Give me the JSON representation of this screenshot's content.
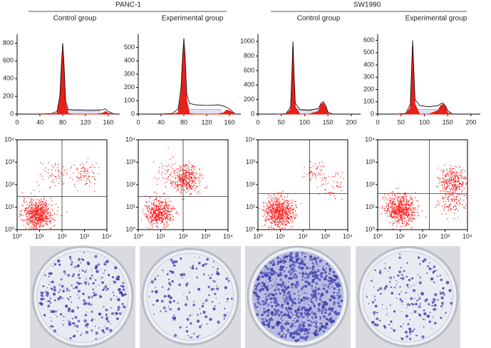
{
  "header": {
    "left": "PANC-1",
    "right": "SW1990"
  },
  "groups": [
    "Control group",
    "Experimental group",
    "Control group",
    "Experimental group"
  ],
  "chart_data": [
    {
      "type": "histogram-line",
      "x": [
        40,
        60,
        70,
        75,
        78,
        80,
        82,
        85,
        90,
        100,
        120,
        140,
        150,
        155,
        160,
        170
      ],
      "series": [
        {
          "color": "#000000",
          "values": [
            0,
            5,
            30,
            200,
            600,
            800,
            600,
            150,
            50,
            45,
            40,
            40,
            50,
            60,
            30,
            0
          ]
        },
        {
          "color": "#e8201a",
          "values": [
            0,
            0,
            10,
            180,
            560,
            720,
            560,
            120,
            5,
            0,
            0,
            0,
            10,
            30,
            10,
            0
          ]
        }
      ],
      "xlim": [
        0,
        180
      ],
      "xticks": [
        0,
        40,
        80,
        120,
        160
      ],
      "ylim": [
        0,
        900
      ],
      "yticks": [
        0,
        200,
        400,
        600,
        800
      ]
    },
    {
      "type": "histogram-line",
      "x": [
        40,
        60,
        70,
        75,
        78,
        80,
        82,
        85,
        90,
        100,
        120,
        140,
        150,
        155,
        160,
        170
      ],
      "series": [
        {
          "color": "#000000",
          "values": [
            0,
            5,
            40,
            200,
            450,
            570,
            450,
            150,
            80,
            70,
            65,
            70,
            60,
            50,
            40,
            0
          ]
        },
        {
          "color": "#e8201a",
          "values": [
            0,
            0,
            10,
            150,
            420,
            520,
            420,
            100,
            5,
            0,
            0,
            0,
            10,
            30,
            25,
            0
          ]
        }
      ],
      "xlim": [
        0,
        180
      ],
      "xticks": [
        0,
        40,
        80,
        120,
        160
      ],
      "ylim": [
        0,
        600
      ],
      "yticks": [
        0,
        100,
        200,
        300,
        400,
        500
      ]
    },
    {
      "type": "histogram-line",
      "x": [
        40,
        60,
        70,
        73,
        75,
        77,
        80,
        90,
        110,
        130,
        135,
        140,
        145,
        150,
        160
      ],
      "series": [
        {
          "color": "#000000",
          "values": [
            0,
            5,
            100,
            600,
            1000,
            600,
            150,
            60,
            50,
            80,
            150,
            170,
            120,
            30,
            0
          ]
        },
        {
          "color": "#e8201a",
          "values": [
            0,
            0,
            60,
            560,
            960,
            560,
            100,
            0,
            0,
            40,
            130,
            150,
            100,
            10,
            0
          ]
        }
      ],
      "xlim": [
        0,
        220
      ],
      "xticks": [
        0,
        50,
        100,
        150,
        200
      ],
      "ylim": [
        0,
        1100
      ],
      "yticks": [
        0,
        200,
        400,
        600,
        800,
        1000
      ]
    },
    {
      "type": "histogram-line",
      "x": [
        40,
        60,
        70,
        73,
        75,
        77,
        80,
        90,
        110,
        130,
        135,
        140,
        145,
        150,
        160
      ],
      "series": [
        {
          "color": "#000000",
          "values": [
            0,
            5,
            80,
            400,
            600,
            400,
            120,
            70,
            60,
            70,
            85,
            90,
            70,
            30,
            0
          ]
        },
        {
          "color": "#e8201a",
          "values": [
            0,
            0,
            50,
            360,
            560,
            360,
            80,
            0,
            0,
            30,
            70,
            80,
            60,
            10,
            0
          ]
        }
      ],
      "xlim": [
        0,
        220
      ],
      "xticks": [
        0,
        50,
        100,
        150,
        200
      ],
      "ylim": [
        0,
        650
      ],
      "yticks": [
        0,
        100,
        200,
        300,
        400,
        500,
        600
      ]
    },
    {
      "type": "dot-plot",
      "log": true,
      "color": "#ff1a1a",
      "gate": [
        100,
        30
      ],
      "clusters": [
        {
          "x": 8,
          "y": 5,
          "spread": 0.33,
          "n": 700
        },
        {
          "x": 40,
          "y": 300,
          "spread": 0.3,
          "n": 60
        },
        {
          "x": 1000,
          "y": 300,
          "spread": 0.28,
          "n": 90
        }
      ],
      "xlim": [
        1,
        10000
      ],
      "ylim": [
        1,
        10000
      ],
      "xticks": [
        {
          "value": 1,
          "label": "10⁰"
        },
        {
          "value": 10,
          "label": "10¹"
        },
        {
          "value": 100,
          "label": "10²"
        },
        {
          "value": 1000,
          "label": "10³"
        },
        {
          "value": 10000,
          "label": "10⁴"
        }
      ],
      "yticks": [
        {
          "value": 1,
          "label": "10⁰"
        },
        {
          "value": 10,
          "label": "10¹"
        },
        {
          "value": 100,
          "label": "10²"
        },
        {
          "value": 1000,
          "label": "10³"
        },
        {
          "value": 10000,
          "label": "10⁴"
        }
      ]
    },
    {
      "type": "dot-plot",
      "log": true,
      "color": "#ff1a1a",
      "gate": [
        100,
        30
      ],
      "clusters": [
        {
          "x": 8,
          "y": 6,
          "spread": 0.3,
          "n": 500
        },
        {
          "x": 150,
          "y": 180,
          "spread": 0.3,
          "n": 350
        },
        {
          "x": 30,
          "y": 300,
          "spread": 0.35,
          "n": 80
        }
      ],
      "xlim": [
        1,
        10000
      ],
      "ylim": [
        1,
        10000
      ],
      "xticks": [
        {
          "value": 1,
          "label": "10⁰"
        },
        {
          "value": 10,
          "label": "10¹"
        },
        {
          "value": 100,
          "label": "10²"
        },
        {
          "value": 1000,
          "label": "10³"
        },
        {
          "value": 10000,
          "label": "10⁴"
        }
      ],
      "yticks": [
        {
          "value": 1,
          "label": "10⁰"
        },
        {
          "value": 10,
          "label": "10¹"
        },
        {
          "value": 100,
          "label": "10²"
        },
        {
          "value": 1000,
          "label": "10³"
        },
        {
          "value": 10000,
          "label": "10⁴"
        }
      ]
    },
    {
      "type": "dot-plot",
      "log": true,
      "color": "#ff1a1a",
      "gate": [
        200,
        40
      ],
      "clusters": [
        {
          "x": 8,
          "y": 6,
          "spread": 0.33,
          "n": 700
        },
        {
          "x": 300,
          "y": 400,
          "spread": 0.25,
          "n": 50
        },
        {
          "x": 1500,
          "y": 100,
          "spread": 0.35,
          "n": 50
        }
      ],
      "xlim": [
        1,
        10000
      ],
      "ylim": [
        1,
        10000
      ],
      "xticks": [
        {
          "value": 1,
          "label": "10⁰"
        },
        {
          "value": 10,
          "label": "10¹"
        },
        {
          "value": 100,
          "label": "10²"
        },
        {
          "value": 1000,
          "label": "10³"
        },
        {
          "value": 10000,
          "label": "10⁴"
        }
      ],
      "yticks": [
        {
          "value": 1,
          "label": "10⁰"
        },
        {
          "value": 10,
          "label": "10¹"
        },
        {
          "value": 100,
          "label": "10²"
        },
        {
          "value": 1000,
          "label": "10³"
        },
        {
          "value": 10000,
          "label": "10⁴"
        }
      ]
    },
    {
      "type": "dot-plot",
      "log": true,
      "color": "#ff1a1a",
      "gate": [
        200,
        40
      ],
      "clusters": [
        {
          "x": 10,
          "y": 8,
          "spread": 0.33,
          "n": 650
        },
        {
          "x": 2000,
          "y": 150,
          "spread": 0.3,
          "n": 300
        },
        {
          "x": 2000,
          "y": 20,
          "spread": 0.3,
          "n": 120
        }
      ],
      "xlim": [
        1,
        10000
      ],
      "ylim": [
        1,
        10000
      ],
      "xticks": [
        {
          "value": 1,
          "label": "10⁰"
        },
        {
          "value": 10,
          "label": "10¹"
        },
        {
          "value": 100,
          "label": "10²"
        },
        {
          "value": 1000,
          "label": "10³"
        },
        {
          "value": 10000,
          "label": "10⁴"
        }
      ],
      "yticks": [
        {
          "value": 1,
          "label": "10⁰"
        },
        {
          "value": 10,
          "label": "10¹"
        },
        {
          "value": 100,
          "label": "10²"
        },
        {
          "value": 1000,
          "label": "10³"
        },
        {
          "value": 10000,
          "label": "10⁴"
        }
      ]
    }
  ]
}
